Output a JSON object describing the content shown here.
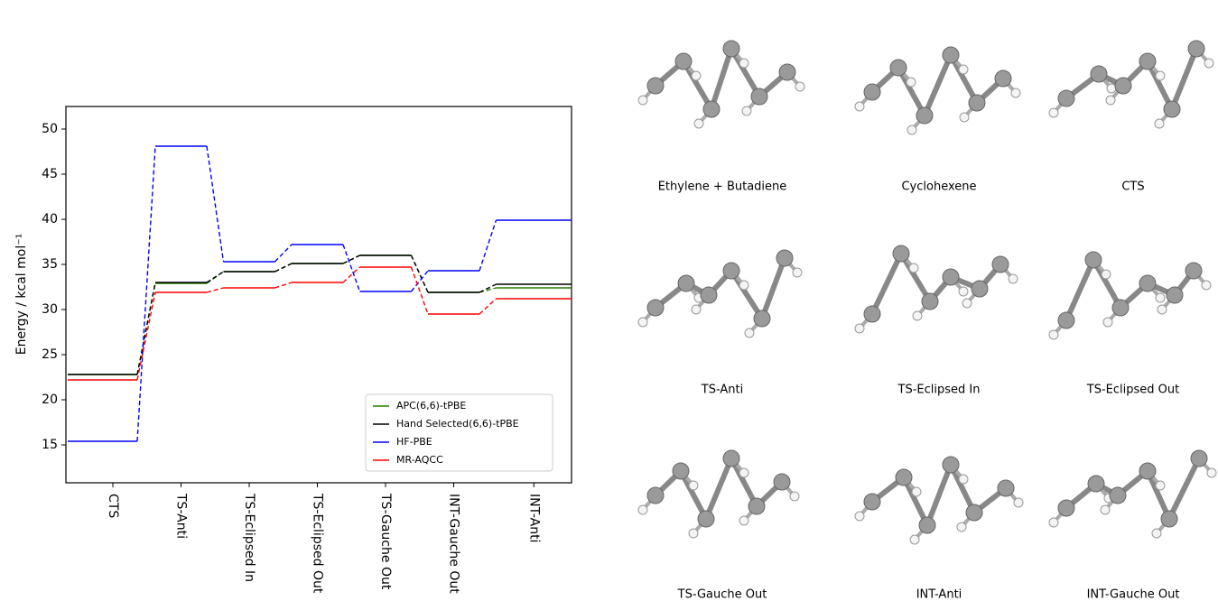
{
  "chart_data": {
    "type": "energy-level",
    "ylabel": "Energy / kcal mol⁻¹",
    "categories": [
      "CTS",
      "TS-Anti",
      "TS-Eclipsed In",
      "TS-Eclipsed Out",
      "TS-Gauche Out",
      "INT-Gauche Out",
      "INT-Anti"
    ],
    "series": [
      {
        "name": "APC(6,6)-tPBE",
        "color": "#208000",
        "values": [
          22.8,
          32.9,
          34.2,
          35.1,
          36.0,
          31.9,
          32.4
        ]
      },
      {
        "name": "Hand Selected(6,6)-tPBE",
        "color": "#000000",
        "values": [
          22.8,
          33.0,
          34.2,
          35.1,
          36.0,
          31.9,
          32.8
        ]
      },
      {
        "name": "HF-PBE",
        "color": "#0000ff",
        "values": [
          15.4,
          48.1,
          35.3,
          37.2,
          32.0,
          34.3,
          39.9
        ]
      },
      {
        "name": "MR-AQCC",
        "color": "#ff0000",
        "values": [
          22.2,
          31.9,
          32.4,
          33.0,
          34.7,
          29.5,
          31.2
        ]
      }
    ],
    "ylim": [
      10.8,
      52.5
    ],
    "yticks": [
      15,
      20,
      25,
      30,
      35,
      40,
      45,
      50
    ],
    "legend": "lower right"
  },
  "molecules": [
    "Ethylene + Butadiene",
    "Cyclohexene",
    "CTS",
    "TS-Anti",
    "TS-Eclipsed In",
    "TS-Eclipsed Out",
    "TS-Gauche Out",
    "INT-Anti",
    "INT-Gauche Out"
  ]
}
